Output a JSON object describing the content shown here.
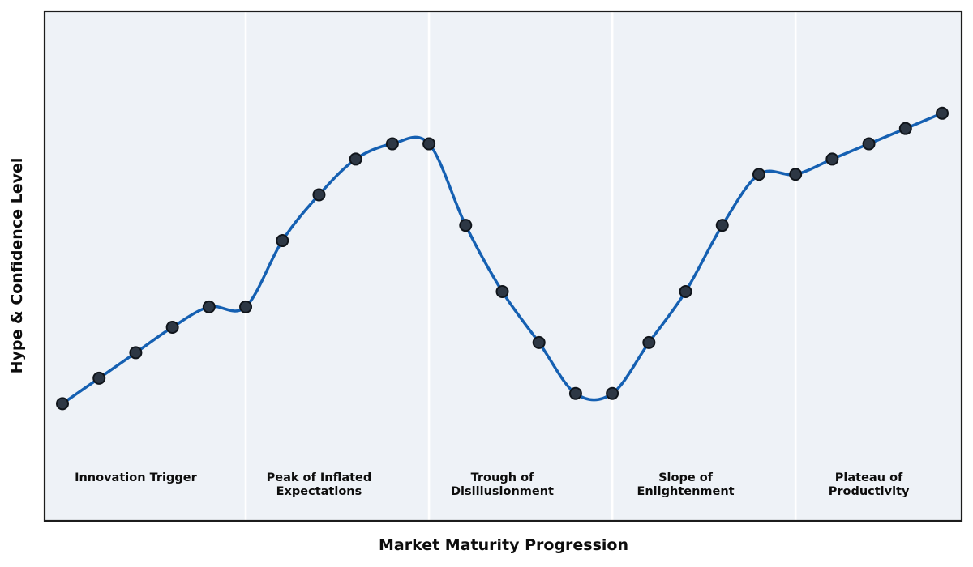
{
  "chart_data": {
    "type": "line",
    "title": "",
    "xlabel": "Market Maturity Progression",
    "ylabel": "Hype & Confidence Level",
    "x": [
      0,
      1,
      2,
      3,
      4,
      5,
      6,
      7,
      8,
      9,
      10,
      11,
      12,
      13,
      14,
      15,
      16,
      17,
      18,
      19,
      20,
      21,
      22,
      23,
      24
    ],
    "values": [
      23,
      28,
      33,
      38,
      42,
      42,
      55,
      64,
      71,
      74,
      74,
      58,
      45,
      35,
      25,
      25,
      35,
      45,
      58,
      68,
      68,
      71,
      74,
      77,
      80
    ],
    "ylim": [
      0,
      100
    ],
    "xlim": [
      0,
      24
    ],
    "grid": false,
    "legend": false,
    "y_ticks_visible": false,
    "x_ticks_visible": false,
    "marker": "circle",
    "smooth": true,
    "phases": [
      {
        "label_lines": [
          "Innovation Trigger"
        ],
        "x_start": 0,
        "x_end": 5,
        "label_x": 2
      },
      {
        "label_lines": [
          "Peak of Inflated",
          "Expectations"
        ],
        "x_start": 5,
        "x_end": 10,
        "label_x": 7
      },
      {
        "label_lines": [
          "Trough of",
          "Disillusionment"
        ],
        "x_start": 10,
        "x_end": 15,
        "label_x": 12
      },
      {
        "label_lines": [
          "Slope of",
          "Enlightenment"
        ],
        "x_start": 15,
        "x_end": 20,
        "label_x": 17
      },
      {
        "label_lines": [
          "Plateau of",
          "Productivity"
        ],
        "x_start": 20,
        "x_end": 24,
        "label_x": 22
      }
    ],
    "colors": {
      "line": "#1560b2",
      "marker_fill": "#2d3744",
      "marker_edge": "#10151b",
      "band_fill": "#eef2f7",
      "separator": "#ffffff",
      "spine": "#1c1c1c",
      "text": "#0d0d0d",
      "figure_background": "#ffffff"
    }
  }
}
